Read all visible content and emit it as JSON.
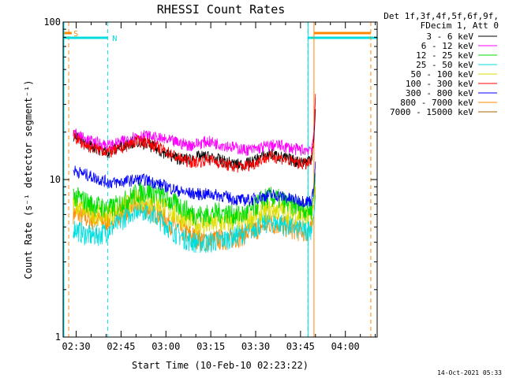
{
  "chart_data": {
    "type": "line",
    "title": "RHESSI Count Rates",
    "xlabel": "Start Time (10-Feb-10 02:23:22)",
    "ylabel": "Count Rate (s⁻¹ detector segment⁻¹)",
    "yscale": "log",
    "ylim": [
      1,
      100
    ],
    "xlim_minutes": [
      -4.37,
      100.63
    ],
    "x_tick_labels": [
      "02:30",
      "02:45",
      "03:00",
      "03:15",
      "03:30",
      "03:45",
      "04:00"
    ],
    "x_tick_minutes": [
      0,
      15,
      30,
      45,
      60,
      75,
      90
    ],
    "y_tick_labels": [
      "1",
      "10",
      "100"
    ],
    "y_tick_values": [
      1,
      10,
      100
    ],
    "legend_header": [
      "Det 1f,3f,4f,5f,6f,9f,",
      "FDecim 1, Att 0"
    ],
    "legend_position": "top-right",
    "x_minutes": [
      -1,
      2,
      5,
      8,
      11,
      14,
      17,
      20,
      23,
      26,
      29,
      32,
      35,
      38,
      41,
      44,
      47,
      50,
      53,
      56,
      59,
      62,
      65,
      68,
      71,
      74,
      77,
      78.7,
      79.5,
      80
    ],
    "series": [
      {
        "name": "3 - 6 keV",
        "color": "#000000",
        "values": [
          19,
          17.5,
          16.5,
          15.5,
          15,
          16,
          17,
          17.5,
          17,
          16,
          15,
          14,
          13.5,
          13.5,
          14,
          14,
          13.5,
          13,
          12.5,
          12.5,
          13,
          14,
          14.5,
          14,
          13.5,
          13,
          13,
          14,
          18,
          28
        ]
      },
      {
        "name": "6 - 12 keV",
        "color": "#ff00ff",
        "values": [
          20,
          18.5,
          17.5,
          17,
          16.5,
          17,
          18,
          19,
          19,
          18.5,
          18,
          17.5,
          17,
          16.5,
          17,
          17.5,
          17,
          16.5,
          16,
          15.5,
          15.5,
          16,
          16.5,
          16.5,
          16,
          15.5,
          15.5,
          16,
          20,
          33
        ]
      },
      {
        "name": "12 - 25 keV",
        "color": "#00dd00",
        "values": [
          8,
          7.5,
          7,
          6.8,
          6.5,
          7,
          7.5,
          8.2,
          8.5,
          8.3,
          7.8,
          7.2,
          6.8,
          6.2,
          6,
          6,
          6.2,
          6.2,
          6,
          6,
          6.5,
          7.5,
          7.8,
          7.5,
          7,
          6.8,
          6.5,
          6.5,
          8,
          11
        ]
      },
      {
        "name": "25 - 50 keV",
        "color": "#00dddd",
        "values": [
          5,
          4.6,
          4.4,
          4.5,
          4.8,
          5.3,
          6,
          6.6,
          6.5,
          6,
          5.4,
          4.8,
          4.4,
          4.1,
          4,
          4,
          4.1,
          4.2,
          4.4,
          4.6,
          4.9,
          5.3,
          5.4,
          5.3,
          5.1,
          4.9,
          4.8,
          4.9,
          6,
          8
        ]
      },
      {
        "name": "50 - 100 keV",
        "color": "#dddd00",
        "values": [
          7,
          6.5,
          6.2,
          6,
          6,
          6.5,
          7,
          7.5,
          7.5,
          7.2,
          6.8,
          6.2,
          5.8,
          5.5,
          5.2,
          5.2,
          5.3,
          5.3,
          5.5,
          5.5,
          5.8,
          6.2,
          6.5,
          6.4,
          6.2,
          6,
          5.8,
          5.9,
          7,
          10
        ]
      },
      {
        "name": "100 - 300 keV",
        "color": "#ff0000",
        "values": [
          19,
          17,
          16,
          15.5,
          15,
          15.5,
          16.5,
          17.5,
          17.5,
          16.5,
          15.5,
          14.5,
          13.5,
          13,
          13,
          13.5,
          13,
          12.5,
          12,
          12.2,
          12.5,
          13.5,
          14,
          13.8,
          13.2,
          12.8,
          12.5,
          13,
          20,
          35
        ]
      },
      {
        "name": "300 - 800 keV",
        "color": "#0000ff",
        "values": [
          11.5,
          11,
          10.5,
          10,
          9.6,
          9.6,
          9.8,
          10,
          10,
          9.6,
          9.2,
          8.8,
          8.4,
          8.2,
          8.1,
          8.1,
          8,
          7.8,
          7.5,
          7.4,
          7.5,
          7.8,
          8,
          7.9,
          7.6,
          7.4,
          7.3,
          7.4,
          9,
          13
        ]
      },
      {
        "name": "800 - 7000 keV",
        "color": "#ff8800",
        "values": [
          6.2,
          5.8,
          5.6,
          5.5,
          5.5,
          6,
          6.5,
          6.9,
          6.8,
          6.3,
          5.8,
          5.2,
          4.8,
          4.5,
          4.2,
          4.1,
          4.2,
          4.2,
          4.3,
          4.5,
          4.7,
          5.1,
          5.3,
          5.2,
          5,
          4.8,
          4.7,
          4.8,
          6,
          9
        ]
      },
      {
        "name": "7000 - 15000 keV",
        "color": "#aa6600",
        "values": [
          null,
          null,
          null,
          null,
          null,
          null,
          null,
          null,
          null,
          null,
          null,
          null,
          null,
          null,
          null,
          null,
          null,
          null,
          null,
          null,
          null,
          null,
          null,
          null,
          null,
          null,
          null,
          null,
          null,
          null
        ]
      }
    ],
    "annotations": [
      {
        "label": "S",
        "color": "#ff8800",
        "flag_start_minutes": -4.37,
        "flag_end_minutes": -1.5,
        "marker_minutes": -2.5
      },
      {
        "label": "N",
        "color": "#00dddd",
        "flag_start_minutes": -4.37,
        "flag_end_minutes": 10.5,
        "marker_minutes": 10.5
      },
      {
        "label": "",
        "color": "#00dddd",
        "flag_start_minutes": 77.5,
        "flag_end_minutes": 100.63,
        "marker_minutes": 77.5
      },
      {
        "label": "",
        "color": "#ff8800",
        "flag_start_minutes": 79.5,
        "flag_end_minutes": 98.5,
        "marker_minutes": 98.5
      }
    ],
    "spike_minutes": 79.5,
    "spike_color": "#ff8800",
    "timestamp": "14-Oct-2021 05:33"
  }
}
